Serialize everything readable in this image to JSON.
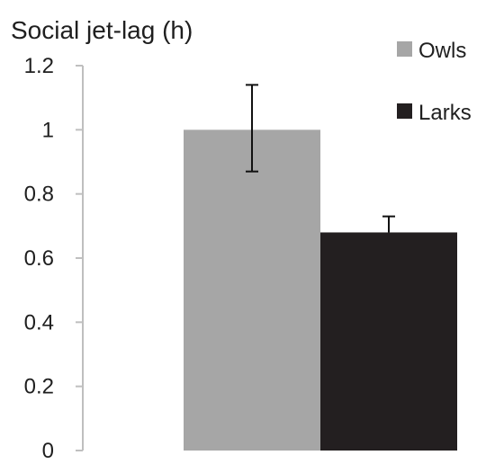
{
  "chart_data": {
    "type": "bar",
    "title": "",
    "xlabel": "",
    "ylabel": "Social jet-lag (h)",
    "ylim": [
      0,
      1.2
    ],
    "yticks": [
      0,
      0.2,
      0.4,
      0.6,
      0.8,
      1,
      1.2
    ],
    "ytick_labels": [
      "0",
      "0.2",
      "0.4",
      "0.6",
      "0.8",
      "1",
      "1.2"
    ],
    "grid": false,
    "legend_position": "top-right",
    "series": [
      {
        "name": "Owls",
        "value": 1.0,
        "error_low": 0.87,
        "error_high": 1.14,
        "color": "#a6a6a6"
      },
      {
        "name": "Larks",
        "value": 0.68,
        "error_low": 0.68,
        "error_high": 0.73,
        "color": "#231f20"
      }
    ]
  }
}
